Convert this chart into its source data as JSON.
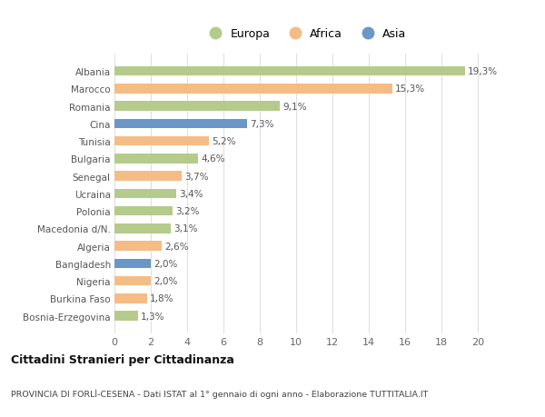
{
  "categories": [
    "Albania",
    "Marocco",
    "Romania",
    "Cina",
    "Tunisia",
    "Bulgaria",
    "Senegal",
    "Ucraina",
    "Polonia",
    "Macedonia d/N.",
    "Algeria",
    "Bangladesh",
    "Nigeria",
    "Burkina Faso",
    "Bosnia-Erzegovina"
  ],
  "values": [
    19.3,
    15.3,
    9.1,
    7.3,
    5.2,
    4.6,
    3.7,
    3.4,
    3.2,
    3.1,
    2.6,
    2.0,
    2.0,
    1.8,
    1.3
  ],
  "labels": [
    "19,3%",
    "15,3%",
    "9,1%",
    "7,3%",
    "5,2%",
    "4,6%",
    "3,7%",
    "3,4%",
    "3,2%",
    "3,1%",
    "2,6%",
    "2,0%",
    "2,0%",
    "1,8%",
    "1,3%"
  ],
  "continents": [
    "Europa",
    "Africa",
    "Europa",
    "Asia",
    "Africa",
    "Europa",
    "Africa",
    "Europa",
    "Europa",
    "Europa",
    "Africa",
    "Asia",
    "Africa",
    "Africa",
    "Europa"
  ],
  "colors": {
    "Europa": "#b5cb8b",
    "Africa": "#f5bc85",
    "Asia": "#6b96c8"
  },
  "xlim": [
    0,
    21
  ],
  "xticks": [
    0,
    2,
    4,
    6,
    8,
    10,
    12,
    14,
    16,
    18,
    20
  ],
  "title1": "Cittadini Stranieri per Cittadinanza",
  "title2": "PROVINCIA DI FORLÌ-CESENA - Dati ISTAT al 1° gennaio di ogni anno - Elaborazione TUTTITALIA.IT",
  "bg_color": "#ffffff",
  "grid_color": "#e0e0e0"
}
